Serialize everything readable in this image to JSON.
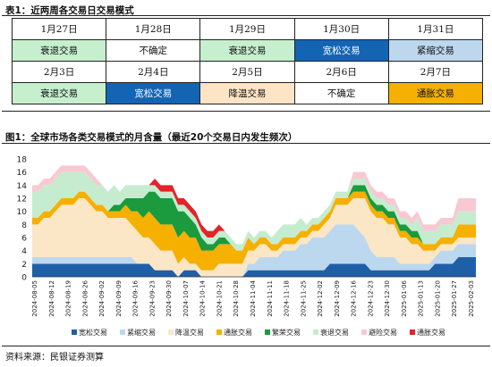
{
  "table_title": "表1：近两周各交易日交易模式",
  "schedule": [
    [
      {
        "date": "1月27日",
        "mode": "衰退交易",
        "bg": "#c6efce",
        "fg": "#111111"
      },
      {
        "date": "1月28日",
        "mode": "不确定",
        "bg": "#ffffff",
        "fg": "#111111"
      },
      {
        "date": "1月29日",
        "mode": "衰退交易",
        "bg": "#c6efce",
        "fg": "#111111"
      },
      {
        "date": "1月30日",
        "mode": "宽松交易",
        "bg": "#1464b4",
        "fg": "#ffffff"
      },
      {
        "date": "1月31日",
        "mode": "紧缩交易",
        "bg": "#bdd7ee",
        "fg": "#111111"
      }
    ],
    [
      {
        "date": "2月3日",
        "mode": "衰退交易",
        "bg": "#c6efce",
        "fg": "#111111"
      },
      {
        "date": "2月4日",
        "mode": "宽松交易",
        "bg": "#1464b4",
        "fg": "#ffffff"
      },
      {
        "date": "2月5日",
        "mode": "降温交易",
        "bg": "#fce4c4",
        "fg": "#111111"
      },
      {
        "date": "2月6日",
        "mode": "不确定",
        "bg": "#ffffff",
        "fg": "#111111"
      },
      {
        "date": "2月7日",
        "mode": "通胀交易",
        "bg": "#f5b000",
        "fg": "#111111"
      }
    ]
  ],
  "figure_title": "图1：全球市场各类交易模式的月含量（最近20个交易日内发生频次）",
  "source": "资料来源：民银证券测算",
  "chart_data": {
    "type": "area",
    "stacked": true,
    "ylim": [
      0,
      18
    ],
    "yticks": [
      0,
      2,
      4,
      6,
      8,
      10,
      12,
      14,
      16,
      18
    ],
    "xlabels": [
      "2024-08-05",
      "2024-08-12",
      "2024-08-19",
      "2024-08-26",
      "2024-09-02",
      "2024-09-09",
      "2024-09-16",
      "2024-09-23",
      "2024-09-30",
      "2024-10-07",
      "2024-10-14",
      "2024-10-21",
      "2024-10-28",
      "2024-11-04",
      "2024-11-11",
      "2024-11-18",
      "2024-11-25",
      "2024-12-02",
      "2024-12-09",
      "2024-12-16",
      "2024-12-23",
      "2024-12-30",
      "2025-01-06",
      "2025-01-13",
      "2025-01-20",
      "2025-01-27",
      "2025-02-03"
    ],
    "legend": "bottom",
    "series": [
      {
        "name": "宽松交易",
        "color": "#1f5fa8",
        "values": [
          2,
          2,
          2,
          2,
          2,
          2,
          2,
          2,
          2,
          2,
          2,
          2,
          2,
          2,
          2,
          2,
          2,
          2,
          2,
          2,
          2,
          1,
          1,
          1,
          1,
          0,
          1,
          1,
          1,
          0,
          0,
          0,
          0,
          0,
          0,
          0,
          0,
          1,
          1,
          1,
          1,
          1,
          1,
          1,
          1,
          1,
          1,
          1,
          1,
          1,
          1,
          2,
          2,
          2,
          2,
          2,
          2,
          2,
          1,
          1,
          1,
          1,
          1,
          1,
          1,
          1,
          1,
          1,
          1,
          2,
          2,
          2,
          2,
          3,
          3,
          3,
          3
        ]
      },
      {
        "name": "紧缩交易",
        "color": "#bcd8ee",
        "values": [
          1,
          1,
          1,
          1,
          1,
          1,
          1,
          1,
          1,
          1,
          1,
          1,
          1,
          1,
          1,
          1,
          1,
          1,
          0,
          0,
          0,
          0,
          0,
          0,
          0,
          0,
          0,
          0,
          0,
          0,
          0,
          0,
          0,
          0,
          0,
          0,
          0,
          1,
          1,
          2,
          2,
          2,
          2,
          3,
          3,
          3,
          4,
          4,
          5,
          5,
          5,
          5,
          6,
          6,
          6,
          6,
          5,
          4,
          3,
          2,
          2,
          2,
          2,
          1,
          1,
          1,
          1,
          1,
          1,
          1,
          2,
          2,
          2,
          2,
          2,
          2,
          2
        ]
      },
      {
        "name": "降温交易",
        "color": "#fbe6c6",
        "values": [
          5,
          5,
          6,
          6,
          7,
          8,
          8,
          8,
          9,
          9,
          8,
          7,
          7,
          6,
          6,
          6,
          6,
          5,
          5,
          4,
          4,
          4,
          3,
          3,
          3,
          2,
          2,
          1,
          1,
          1,
          1,
          1,
          2,
          2,
          2,
          2,
          2,
          2,
          2,
          2,
          2,
          1,
          1,
          1,
          1,
          1,
          1,
          1,
          1,
          1,
          2,
          2,
          3,
          3,
          3,
          4,
          5,
          6,
          6,
          6,
          6,
          5,
          5,
          4,
          4,
          3,
          3,
          2,
          2,
          1,
          1,
          1,
          1,
          1,
          1,
          1,
          1
        ]
      },
      {
        "name": "通胀交易",
        "color": "#f5b000",
        "values": [
          1,
          1,
          1,
          1,
          1,
          1,
          1,
          1,
          1,
          1,
          1,
          1,
          1,
          1,
          1,
          1,
          2,
          2,
          3,
          3,
          4,
          4,
          4,
          4,
          4,
          4,
          4,
          4,
          4,
          3,
          3,
          3,
          3,
          3,
          3,
          2,
          2,
          2,
          1,
          1,
          1,
          1,
          1,
          1,
          1,
          1,
          1,
          1,
          1,
          1,
          1,
          1,
          1,
          1,
          1,
          1,
          1,
          1,
          1,
          1,
          1,
          1,
          1,
          1,
          1,
          1,
          1,
          1,
          1,
          1,
          1,
          1,
          1,
          2,
          2,
          2,
          2
        ]
      },
      {
        "name": "繁荣交易",
        "color": "#1b9a3e",
        "values": [
          0,
          0,
          0,
          0,
          0,
          0,
          0,
          0,
          0,
          0,
          0,
          0,
          0,
          0,
          1,
          1,
          1,
          2,
          2,
          3,
          3,
          4,
          4,
          4,
          4,
          4,
          3,
          3,
          2,
          2,
          1,
          1,
          1,
          1,
          0,
          0,
          0,
          0,
          0,
          0,
          0,
          0,
          0,
          0,
          0,
          0,
          0,
          0,
          0,
          0,
          0,
          0,
          0,
          0,
          0,
          1,
          1,
          1,
          1,
          1,
          1,
          1,
          1,
          1,
          1,
          1,
          1,
          0,
          0,
          0,
          0,
          0,
          0,
          0,
          0,
          0,
          0
        ]
      },
      {
        "name": "衰退交易",
        "color": "#c6eccf",
        "values": [
          4,
          4,
          4,
          4,
          4,
          4,
          4,
          4,
          3,
          3,
          3,
          3,
          3,
          3,
          3,
          2,
          2,
          2,
          2,
          2,
          1,
          1,
          1,
          1,
          1,
          1,
          1,
          1,
          1,
          1,
          1,
          1,
          1,
          1,
          1,
          1,
          1,
          1,
          1,
          1,
          1,
          1,
          2,
          2,
          2,
          2,
          2,
          1,
          1,
          1,
          1,
          1,
          1,
          1,
          1,
          1,
          1,
          1,
          1,
          1,
          1,
          1,
          1,
          1,
          1,
          1,
          2,
          2,
          2,
          2,
          2,
          2,
          2,
          2,
          2,
          2,
          2
        ]
      },
      {
        "name": "避险交易",
        "color": "#f8c9d2",
        "values": [
          1,
          1,
          1,
          1,
          1,
          1,
          1,
          1,
          1,
          1,
          1,
          1,
          0,
          0,
          0,
          0,
          0,
          0,
          0,
          0,
          0,
          0,
          0,
          0,
          0,
          0,
          0,
          0,
          0,
          0,
          0,
          0,
          0,
          0,
          0,
          0,
          0,
          0,
          0,
          0,
          0,
          0,
          0,
          0,
          0,
          0,
          0,
          0,
          0,
          0,
          0,
          0,
          0,
          0,
          0,
          1,
          1,
          1,
          1,
          1,
          1,
          1,
          1,
          1,
          1,
          1,
          1,
          1,
          1,
          1,
          1,
          1,
          1,
          2,
          2,
          2,
          2
        ]
      },
      {
        "name": "通胀交易",
        "color": "#e4232a",
        "values": [
          0,
          0,
          0,
          0,
          0,
          0,
          0,
          0,
          0,
          0,
          0,
          0,
          0,
          0,
          0,
          0,
          0,
          0,
          0,
          0,
          0,
          1,
          1,
          1,
          1,
          1,
          1,
          1,
          1,
          1,
          1,
          1,
          1,
          0,
          0,
          0,
          0,
          0,
          0,
          0,
          0,
          0,
          0,
          0,
          0,
          0,
          0,
          0,
          0,
          0,
          0,
          0,
          0,
          0,
          0,
          0,
          0,
          0,
          0,
          0,
          0,
          0,
          0,
          0,
          0,
          0,
          0,
          0,
          0,
          0,
          0,
          0,
          0,
          0,
          0,
          0,
          0
        ]
      }
    ]
  }
}
